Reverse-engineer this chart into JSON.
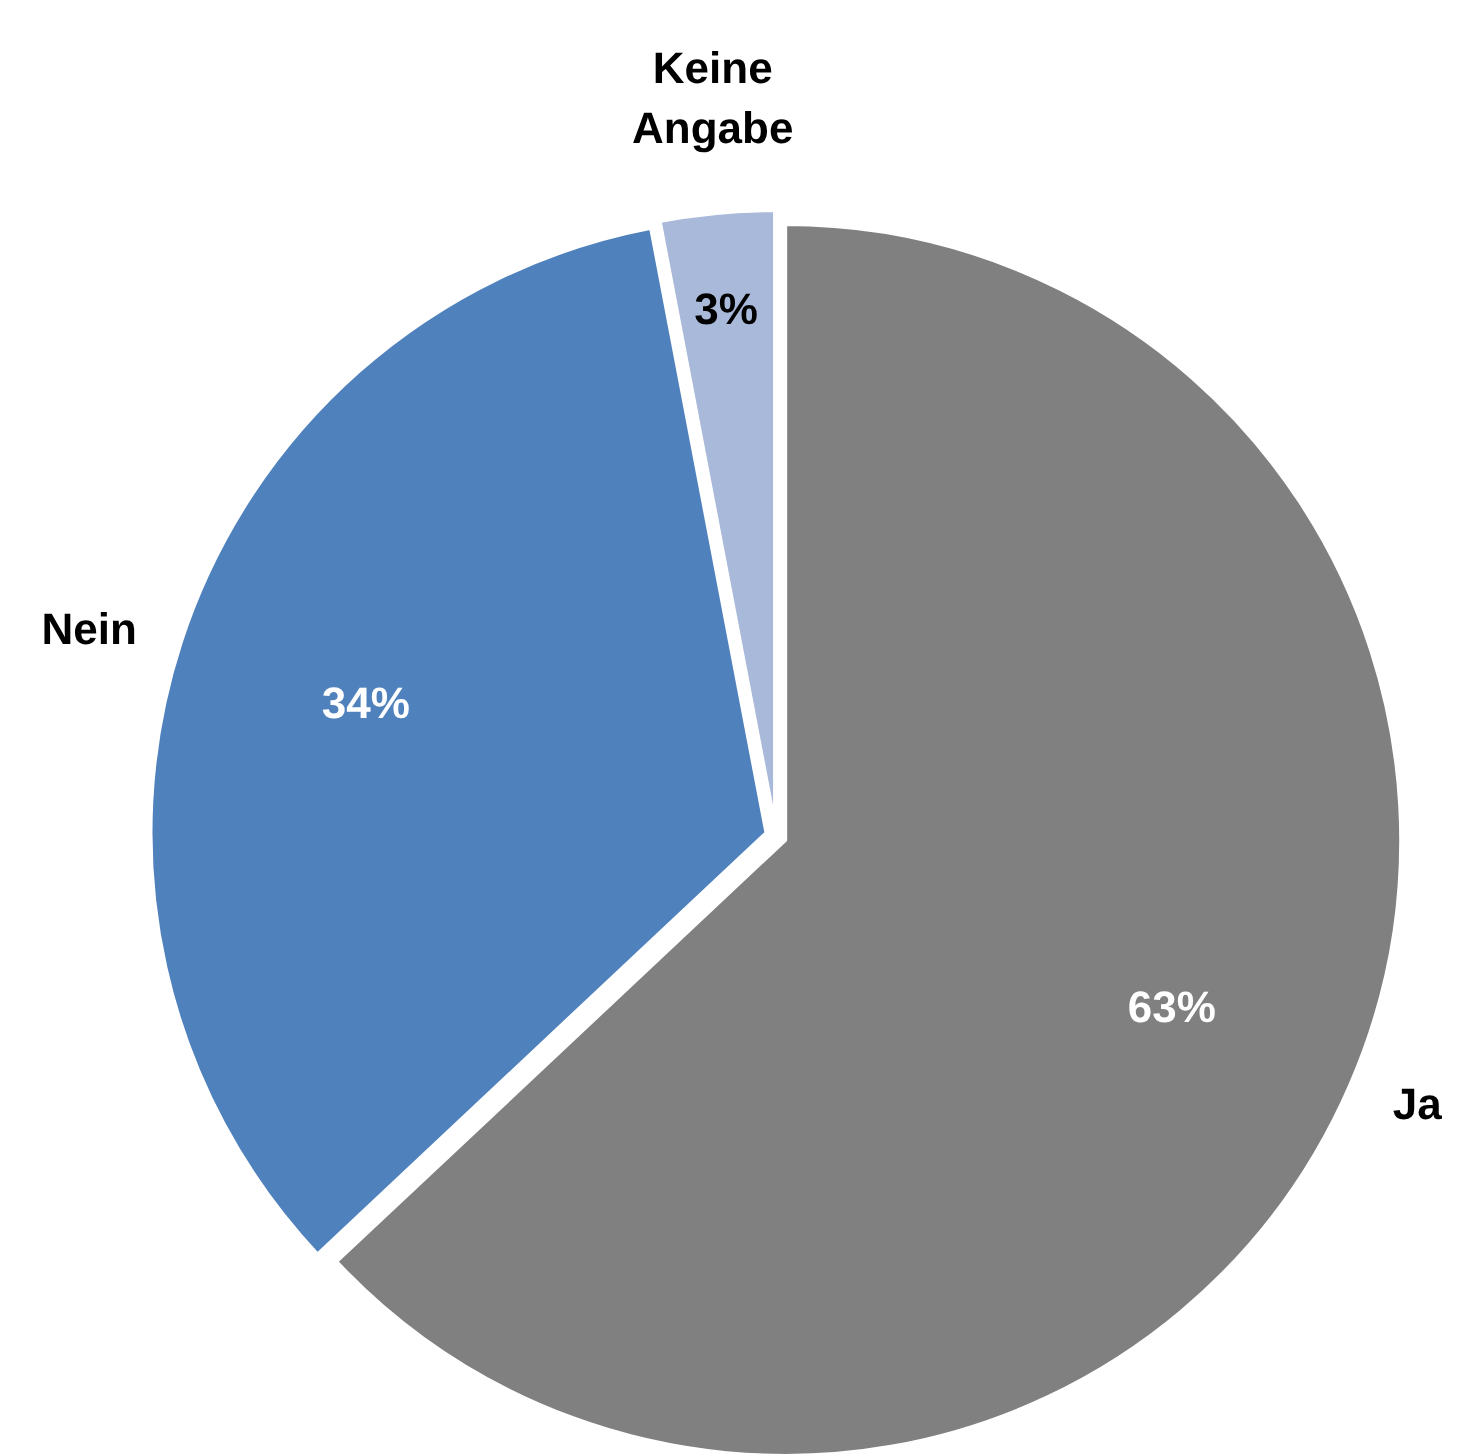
{
  "chart_data": {
    "type": "pie",
    "categories": [
      "Ja",
      "Nein",
      "Keine Angabe"
    ],
    "values": [
      63,
      34,
      3
    ],
    "colors": [
      "#808080",
      "#4f81bd",
      "#a9b9d9"
    ],
    "value_labels": [
      "63%",
      "34%",
      "3%"
    ],
    "legend": false
  }
}
